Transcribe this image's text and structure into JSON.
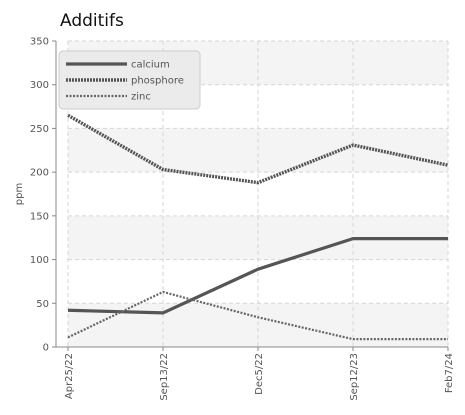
{
  "chart_data": {
    "type": "line",
    "title": "Additifs",
    "ylabel": "ppm",
    "xlabel": "",
    "categories": [
      "Apr25/22",
      "Sep13/22",
      "Dec5/22",
      "Sep12/23",
      "Feb7/24"
    ],
    "ylim": [
      0,
      350
    ],
    "yticks": [
      0,
      50,
      100,
      150,
      200,
      250,
      300,
      350
    ],
    "grid": true,
    "legend_position": "top-left",
    "series": [
      {
        "name": "calcium",
        "values": [
          42,
          39,
          89,
          124,
          124
        ],
        "color": "#555555",
        "style": "solid"
      },
      {
        "name": "phosphore",
        "values": [
          265,
          203,
          188,
          231,
          208
        ],
        "color": "#555555",
        "style": "dotted"
      },
      {
        "name": "zinc",
        "values": [
          11,
          63,
          34,
          9,
          9
        ],
        "color": "#666666",
        "style": "dashed"
      }
    ]
  }
}
